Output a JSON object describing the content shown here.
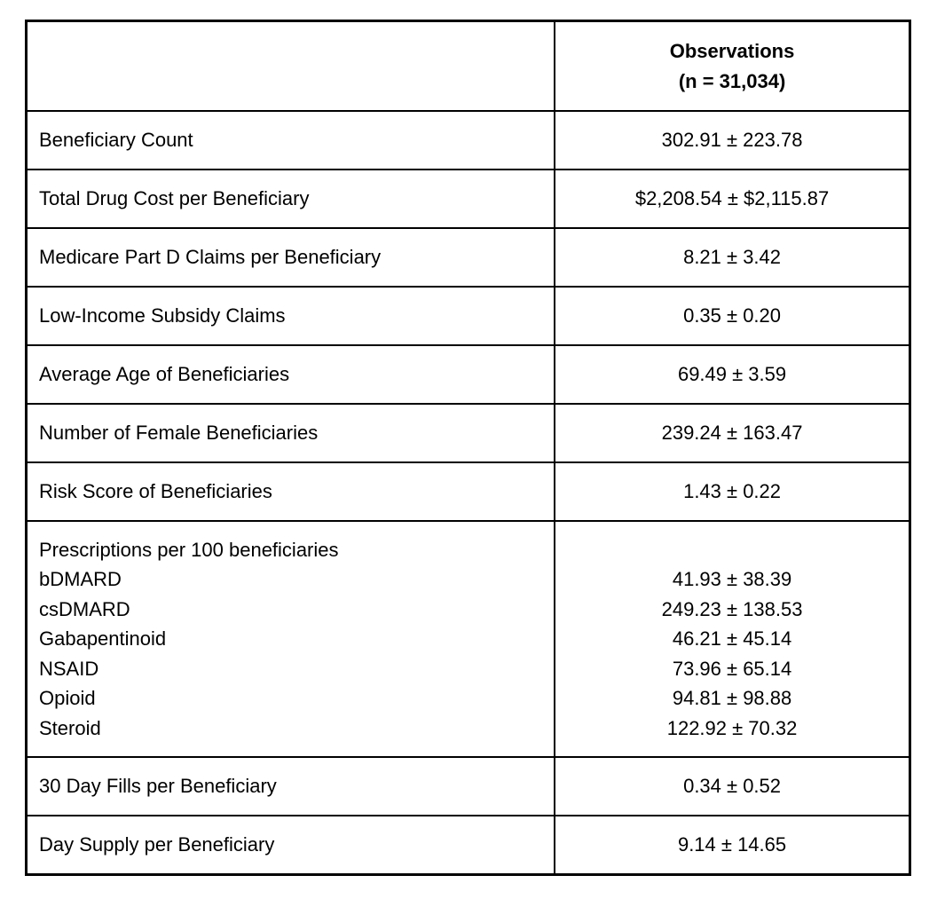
{
  "table": {
    "header": {
      "label_col": "",
      "obs_line1": "Observations",
      "obs_line2": "(n = 31,034)"
    },
    "rows": [
      {
        "label": "Beneficiary Count",
        "value": "302.91 ± 223.78"
      },
      {
        "label": "Total Drug Cost per Beneficiary",
        "value": "$2,208.54 ± $2,115.87"
      },
      {
        "label": "Medicare Part D Claims per Beneficiary",
        "value": "8.21 ± 3.42"
      },
      {
        "label": "Low-Income Subsidy Claims",
        "value": "0.35 ± 0.20"
      },
      {
        "label": "Average Age of Beneficiaries",
        "value": "69.49 ± 3.59"
      },
      {
        "label": "Number of Female Beneficiaries",
        "value": "239.24 ± 163.47"
      },
      {
        "label": "Risk Score of Beneficiaries",
        "value": "1.43 ± 0.22"
      }
    ],
    "prescriptions": {
      "title": "Prescriptions per 100 beneficiaries",
      "items": [
        {
          "name": "bDMARD",
          "value": "41.93 ± 38.39"
        },
        {
          "name": "csDMARD",
          "value": "249.23 ± 138.53"
        },
        {
          "name": "Gabapentinoid",
          "value": "46.21 ± 45.14"
        },
        {
          "name": "NSAID",
          "value": "73.96 ± 65.14"
        },
        {
          "name": "Opioid",
          "value": "94.81 ± 98.88"
        },
        {
          "name": "Steroid",
          "value": "122.92 ± 70.32"
        }
      ]
    },
    "rows_after": [
      {
        "label": "30 Day Fills per Beneficiary",
        "value": "0.34 ± 0.52"
      },
      {
        "label": "Day Supply per Beneficiary",
        "value": "9.14 ± 14.65"
      }
    ]
  }
}
